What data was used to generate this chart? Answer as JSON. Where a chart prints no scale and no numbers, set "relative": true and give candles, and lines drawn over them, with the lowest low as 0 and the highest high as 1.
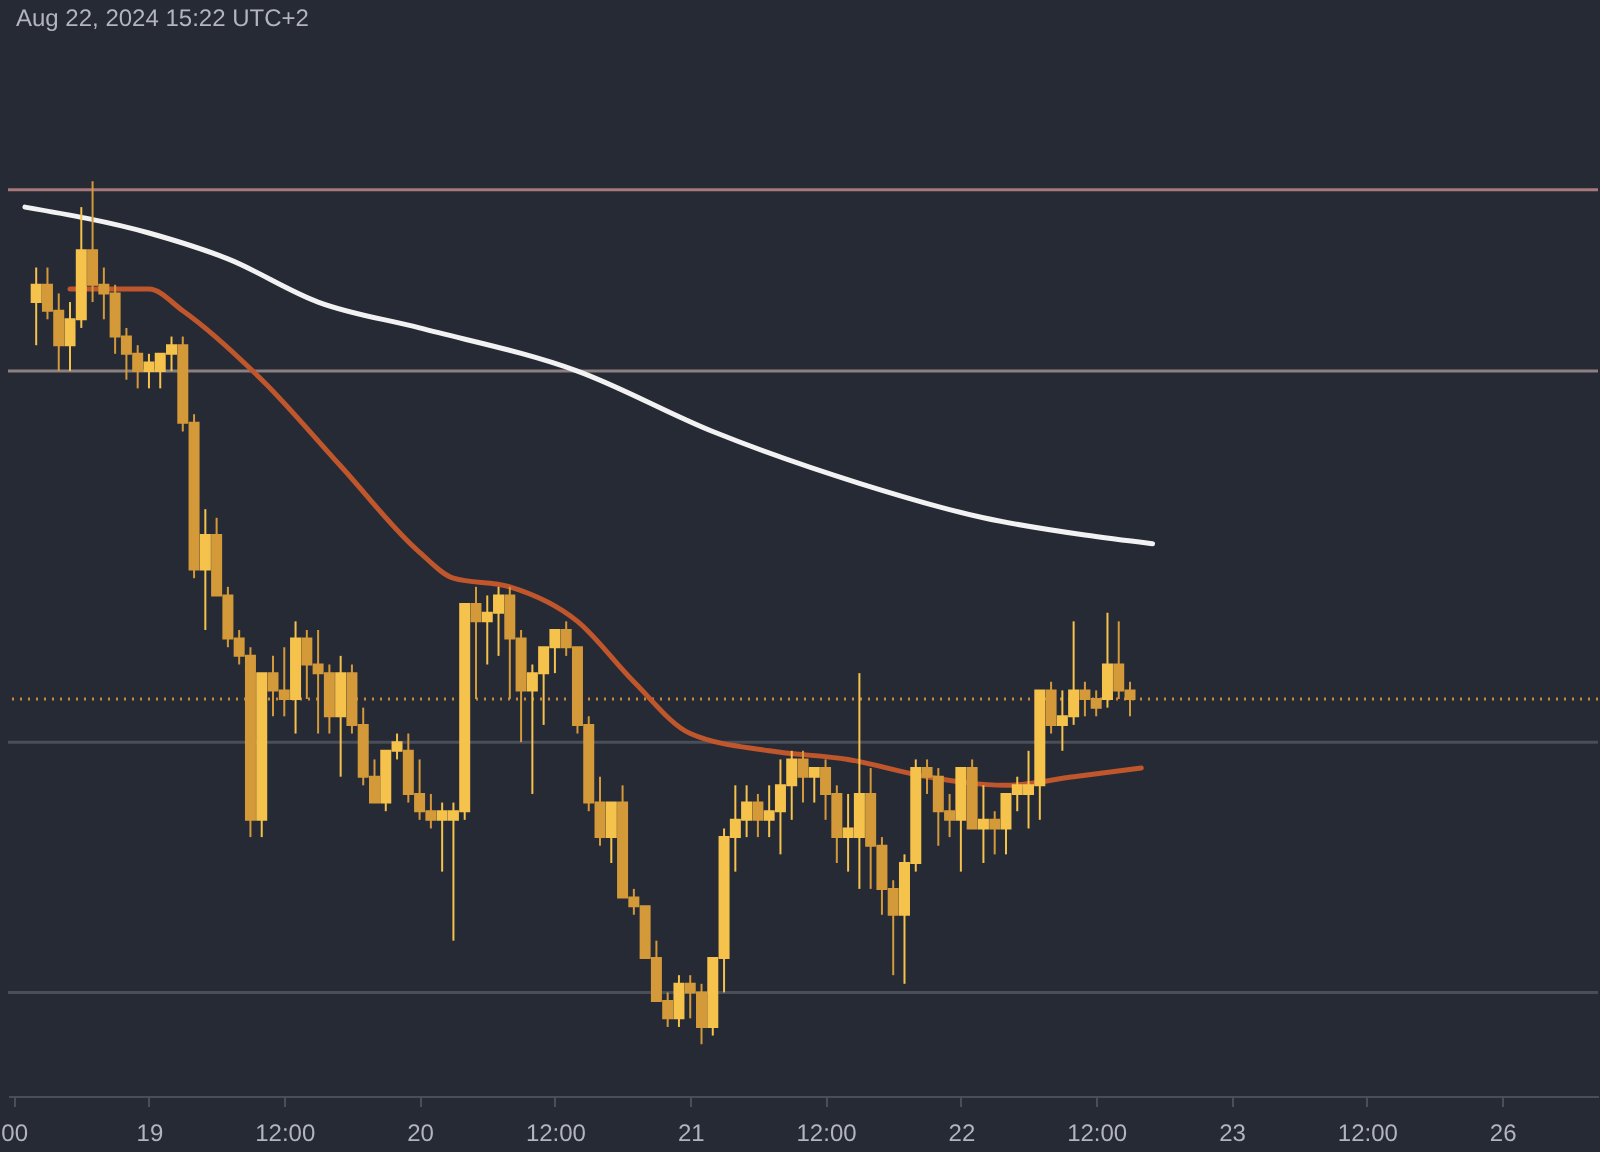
{
  "chart_data": {
    "type": "candlestick",
    "relative": true,
    "annotations": [
      "Aug 22, 2024 15:22 UTC+2"
    ],
    "categories": [
      "00",
      null,
      null,
      null,
      null,
      null,
      null,
      null,
      null,
      null,
      null,
      null,
      "19",
      null,
      null,
      null,
      null,
      null,
      null,
      null,
      null,
      null,
      null,
      null,
      "12:00",
      null,
      null,
      null,
      null,
      null,
      null,
      null,
      null,
      null,
      null,
      null,
      "20",
      null,
      null,
      null,
      null,
      null,
      null,
      null,
      null,
      null,
      null,
      null,
      "12:00",
      null,
      null,
      null,
      null,
      null,
      null,
      null,
      null,
      null,
      null,
      null,
      "21",
      null,
      null,
      null,
      null,
      null,
      null,
      null,
      null,
      null,
      null,
      null,
      "12:00",
      null,
      null,
      null,
      null,
      null,
      null,
      null,
      null,
      null,
      null,
      null,
      "22",
      null,
      null,
      null,
      null,
      null,
      null,
      null,
      null,
      null,
      null,
      null,
      "12:00",
      null,
      null,
      null,
      null,
      null,
      null,
      null,
      null,
      null,
      null,
      null,
      "23",
      null,
      null,
      null,
      null,
      null,
      null,
      null,
      null,
      null,
      null,
      null,
      "12:00",
      null,
      null,
      null,
      null,
      null,
      null,
      null,
      null,
      null,
      null,
      null,
      "26",
      null,
      null,
      null,
      null,
      null,
      null,
      null,
      null
    ],
    "ohlc": [
      null,
      null,
      [
        0.86,
        0.9,
        0.81,
        0.88
      ],
      [
        0.88,
        0.9,
        0.84,
        0.85
      ],
      [
        0.85,
        0.87,
        0.78,
        0.81
      ],
      [
        0.81,
        0.86,
        0.78,
        0.84
      ],
      [
        0.84,
        0.97,
        0.83,
        0.92
      ],
      [
        0.92,
        1.0,
        0.86,
        0.88
      ],
      [
        0.88,
        0.9,
        0.84,
        0.87
      ],
      [
        0.87,
        0.88,
        0.8,
        0.82
      ],
      [
        0.82,
        0.83,
        0.77,
        0.8
      ],
      [
        0.8,
        0.81,
        0.76,
        0.78
      ],
      [
        0.78,
        0.8,
        0.76,
        0.79
      ],
      [
        0.78,
        0.8,
        0.76,
        0.8
      ],
      [
        0.8,
        0.82,
        0.78,
        0.81
      ],
      [
        0.81,
        0.82,
        0.71,
        0.72
      ],
      [
        0.72,
        0.73,
        0.54,
        0.55
      ],
      [
        0.55,
        0.62,
        0.48,
        0.59
      ],
      [
        0.59,
        0.61,
        0.52,
        0.52
      ],
      [
        0.52,
        0.53,
        0.46,
        0.47
      ],
      [
        0.47,
        0.48,
        0.44,
        0.45
      ],
      [
        0.45,
        0.46,
        0.24,
        0.26
      ],
      [
        0.26,
        0.43,
        0.24,
        0.43
      ],
      [
        0.43,
        0.45,
        0.38,
        0.41
      ],
      [
        0.41,
        0.46,
        0.38,
        0.4
      ],
      [
        0.4,
        0.49,
        0.36,
        0.47
      ],
      [
        0.47,
        0.48,
        0.4,
        0.44
      ],
      [
        0.44,
        0.48,
        0.36,
        0.43
      ],
      [
        0.43,
        0.44,
        0.36,
        0.38
      ],
      [
        0.38,
        0.45,
        0.31,
        0.43
      ],
      [
        0.43,
        0.44,
        0.36,
        0.37
      ],
      [
        0.37,
        0.39,
        0.3,
        0.31
      ],
      [
        0.31,
        0.33,
        0.28,
        0.28
      ],
      [
        0.28,
        0.34,
        0.27,
        0.34
      ],
      [
        0.34,
        0.36,
        0.33,
        0.35
      ],
      [
        0.34,
        0.36,
        0.28,
        0.29
      ],
      [
        0.29,
        0.33,
        0.26,
        0.27
      ],
      [
        0.27,
        0.29,
        0.25,
        0.26
      ],
      [
        0.26,
        0.28,
        0.2,
        0.27
      ],
      [
        0.26,
        0.28,
        0.12,
        0.27
      ],
      [
        0.27,
        0.51,
        0.26,
        0.51
      ],
      [
        0.51,
        0.53,
        0.4,
        0.49
      ],
      [
        0.49,
        0.52,
        0.44,
        0.5
      ],
      [
        0.5,
        0.53,
        0.45,
        0.52
      ],
      [
        0.52,
        0.53,
        0.4,
        0.47
      ],
      [
        0.47,
        0.48,
        0.35,
        0.41
      ],
      [
        0.41,
        0.44,
        0.29,
        0.43
      ],
      [
        0.43,
        0.46,
        0.37,
        0.46
      ],
      [
        0.46,
        0.48,
        0.43,
        0.48
      ],
      [
        0.48,
        0.49,
        0.45,
        0.46
      ],
      [
        0.46,
        0.46,
        0.36,
        0.37
      ],
      [
        0.37,
        0.38,
        0.27,
        0.28
      ],
      [
        0.28,
        0.31,
        0.23,
        0.24
      ],
      [
        0.24,
        0.28,
        0.21,
        0.28
      ],
      [
        0.28,
        0.3,
        0.17,
        0.17
      ],
      [
        0.17,
        0.18,
        0.15,
        0.16
      ],
      [
        0.16,
        0.16,
        0.1,
        0.1
      ],
      [
        0.1,
        0.12,
        0.05,
        0.05
      ],
      [
        0.05,
        0.06,
        0.02,
        0.03
      ],
      [
        0.03,
        0.08,
        0.02,
        0.07
      ],
      [
        0.07,
        0.08,
        0.03,
        0.06
      ],
      [
        0.06,
        0.07,
        0.0,
        0.02
      ],
      [
        0.02,
        0.1,
        0.01,
        0.1
      ],
      [
        0.1,
        0.25,
        0.06,
        0.24
      ],
      [
        0.24,
        0.3,
        0.2,
        0.26
      ],
      [
        0.26,
        0.3,
        0.24,
        0.28
      ],
      [
        0.28,
        0.29,
        0.24,
        0.26
      ],
      [
        0.26,
        0.3,
        0.24,
        0.27
      ],
      [
        0.27,
        0.33,
        0.22,
        0.3
      ],
      [
        0.3,
        0.34,
        0.26,
        0.33
      ],
      [
        0.33,
        0.34,
        0.28,
        0.31
      ],
      [
        0.31,
        0.32,
        0.28,
        0.32
      ],
      [
        0.32,
        0.33,
        0.26,
        0.29
      ],
      [
        0.29,
        0.3,
        0.21,
        0.24
      ],
      [
        0.24,
        0.29,
        0.2,
        0.25
      ],
      [
        0.24,
        0.43,
        0.18,
        0.29
      ],
      [
        0.29,
        0.32,
        0.18,
        0.23
      ],
      [
        0.23,
        0.24,
        0.15,
        0.18
      ],
      [
        0.18,
        0.19,
        0.08,
        0.15
      ],
      [
        0.15,
        0.22,
        0.07,
        0.21
      ],
      [
        0.21,
        0.33,
        0.2,
        0.32
      ],
      [
        0.32,
        0.33,
        0.29,
        0.31
      ],
      [
        0.31,
        0.32,
        0.23,
        0.27
      ],
      [
        0.27,
        0.29,
        0.24,
        0.26
      ],
      [
        0.26,
        0.32,
        0.2,
        0.32
      ],
      [
        0.32,
        0.33,
        0.25,
        0.25
      ],
      [
        0.25,
        0.3,
        0.21,
        0.26
      ],
      [
        0.26,
        0.27,
        0.22,
        0.25
      ],
      [
        0.25,
        0.29,
        0.22,
        0.29
      ],
      [
        0.29,
        0.31,
        0.27,
        0.3
      ],
      [
        0.29,
        0.34,
        0.25,
        0.3
      ],
      [
        0.3,
        0.41,
        0.26,
        0.41
      ],
      [
        0.41,
        0.42,
        0.36,
        0.37
      ],
      [
        0.37,
        0.41,
        0.34,
        0.38
      ],
      [
        0.38,
        0.49,
        0.37,
        0.41
      ],
      [
        0.41,
        0.42,
        0.38,
        0.4
      ],
      [
        0.4,
        0.41,
        0.38,
        0.39
      ],
      [
        0.4,
        0.5,
        0.39,
        0.44
      ],
      [
        0.44,
        0.49,
        0.4,
        0.41
      ],
      [
        0.41,
        0.42,
        0.38,
        0.4
      ],
      null,
      null,
      null,
      null,
      null,
      null,
      null,
      null,
      null,
      null,
      null,
      null,
      null,
      null,
      null,
      null,
      null,
      null,
      null,
      null,
      null,
      null,
      null,
      null,
      null,
      null,
      null,
      null,
      null,
      null,
      null,
      null,
      null,
      null,
      null,
      null,
      null,
      null,
      null,
      null,
      null
    ],
    "series": [
      {
        "type": "line",
        "color": "#f2f2f2",
        "values": [
          null,
          0.97,
          null,
          null,
          null,
          null,
          null,
          null,
          null,
          null,
          null,
          null,
          0.94,
          null,
          null,
          null,
          null,
          null,
          null,
          0.91,
          null,
          null,
          null,
          null,
          null,
          null,
          null,
          0.86,
          null,
          null,
          null,
          null,
          null,
          null,
          null,
          null,
          0.83,
          null,
          null,
          null,
          null,
          null,
          null,
          null,
          null,
          null,
          null,
          null,
          null,
          null,
          0.78,
          null,
          null,
          null,
          null,
          null,
          null,
          null,
          null,
          null,
          null,
          null,
          0.71,
          null,
          null,
          null,
          null,
          null,
          null,
          null,
          null,
          null,
          null,
          null,
          null,
          0.65,
          null,
          null,
          null,
          null,
          null,
          null,
          null,
          null,
          null,
          null,
          0.61,
          null,
          null,
          null,
          null,
          null,
          null,
          null,
          null,
          0.59,
          null,
          null,
          null,
          null,
          null,
          0.58,
          null,
          null,
          null,
          null,
          null,
          null,
          null,
          null,
          null,
          null,
          null,
          null,
          null,
          null,
          null,
          null,
          null,
          null,
          null,
          null,
          null,
          null,
          null,
          null,
          null,
          null,
          null,
          null,
          null,
          null,
          null,
          null,
          null,
          null,
          null,
          null,
          null,
          null,
          null
        ]
      },
      {
        "type": "line",
        "color": "#c0562c",
        "values": [
          null,
          null,
          null,
          null,
          null,
          0.875,
          null,
          null,
          null,
          null,
          null,
          null,
          0.875,
          null,
          null,
          0.85,
          null,
          null,
          null,
          null,
          null,
          null,
          0.77,
          null,
          null,
          null,
          null,
          null,
          null,
          0.67,
          null,
          null,
          null,
          null,
          null,
          null,
          0.57,
          null,
          null,
          0.54,
          null,
          null,
          null,
          null,
          0.53,
          null,
          null,
          null,
          null,
          null,
          0.49,
          null,
          null,
          null,
          null,
          0.42,
          null,
          null,
          null,
          null,
          0.36,
          null,
          null,
          null,
          null,
          null,
          null,
          0.34,
          null,
          null,
          null,
          null,
          null,
          null,
          0.33,
          null,
          null,
          null,
          null,
          null,
          null,
          0.31,
          null,
          null,
          null,
          null,
          null,
          null,
          0.3,
          null,
          null,
          null,
          null,
          null,
          0.31,
          null,
          null,
          null,
          null,
          null,
          0.32,
          null,
          null,
          null,
          null,
          null,
          null,
          null,
          null,
          null,
          null,
          null,
          null,
          null,
          null,
          null,
          null,
          null,
          null,
          null,
          null,
          null,
          null,
          null,
          null,
          null,
          null,
          null,
          null,
          null,
          null,
          null,
          null,
          null,
          null,
          null,
          null,
          null,
          null,
          null,
          null
        ]
      }
    ],
    "ref_lines": [
      {
        "axis": "y",
        "value": 0.99,
        "color": "#a8787a"
      },
      {
        "axis": "y",
        "value": 0.78,
        "color": "#8c7f80"
      },
      {
        "axis": "y",
        "value": 0.4,
        "color": "#c9873a",
        "line_style": "dotted"
      },
      {
        "axis": "y",
        "value": 0.35,
        "color": "#4a4e59"
      },
      {
        "axis": "y",
        "value": 0.06,
        "color": "#4a4e59"
      }
    ],
    "colors": [
      null,
      null,
      "#f5c24c",
      "#d49a3a",
      "#d49a3a",
      "#f5c24c",
      "#f5c24c",
      "#d49a3a",
      "#d49a3a",
      "#d49a3a",
      "#d49a3a",
      "#d49a3a",
      "#f5c24c",
      "#f5c24c",
      "#f5c24c",
      "#d49a3a",
      "#d49a3a",
      "#f5c24c",
      "#d49a3a",
      "#d49a3a",
      "#d49a3a",
      "#d49a3a",
      "#f5c24c",
      "#d49a3a",
      "#d49a3a",
      "#f5c24c",
      "#d49a3a",
      "#d49a3a",
      "#d49a3a",
      "#f5c24c",
      "#d49a3a",
      "#d49a3a",
      "#d49a3a",
      "#f5c24c",
      "#f5c24c",
      "#d49a3a",
      "#d49a3a",
      "#d49a3a",
      "#f5c24c",
      "#f5c24c",
      "#f5c24c",
      "#d49a3a",
      "#f5c24c",
      "#f5c24c",
      "#d49a3a",
      "#d49a3a",
      "#f5c24c",
      "#f5c24c",
      "#f5c24c",
      "#d49a3a",
      "#d49a3a",
      "#d49a3a",
      "#d49a3a",
      "#f5c24c",
      "#d49a3a",
      "#d49a3a",
      "#d49a3a",
      "#d49a3a",
      "#d49a3a",
      "#f5c24c",
      "#d49a3a",
      "#d49a3a",
      "#f5c24c",
      "#f5c24c",
      "#f5c24c",
      "#f5c24c",
      "#d49a3a",
      "#f5c24c",
      "#f5c24c",
      "#f5c24c",
      "#d49a3a",
      "#f5c24c",
      "#d49a3a",
      "#d49a3a",
      "#f5c24c",
      "#f5c24c",
      "#d49a3a",
      "#d49a3a",
      "#d49a3a",
      "#f5c24c",
      "#f5c24c",
      "#d49a3a",
      "#d49a3a",
      "#d49a3a",
      "#f5c24c",
      "#d49a3a",
      "#f5c24c",
      "#d49a3a",
      "#f5c24c",
      "#f5c24c",
      "#f5c24c",
      "#f5c24c",
      "#d49a3a",
      "#f5c24c",
      "#f5c24c",
      "#d49a3a",
      "#d49a3a",
      "#f5c24c",
      "#d49a3a",
      "#d49a3a",
      null,
      null,
      null,
      null,
      null,
      null,
      null,
      null,
      null,
      null,
      null,
      null,
      null,
      null,
      null,
      null,
      null,
      null,
      null,
      null,
      null,
      null,
      null,
      null,
      null,
      null,
      null,
      null,
      null,
      null,
      null,
      null,
      null,
      null,
      null,
      null,
      null,
      null,
      null,
      null,
      null
    ],
    "grid": false
  }
}
